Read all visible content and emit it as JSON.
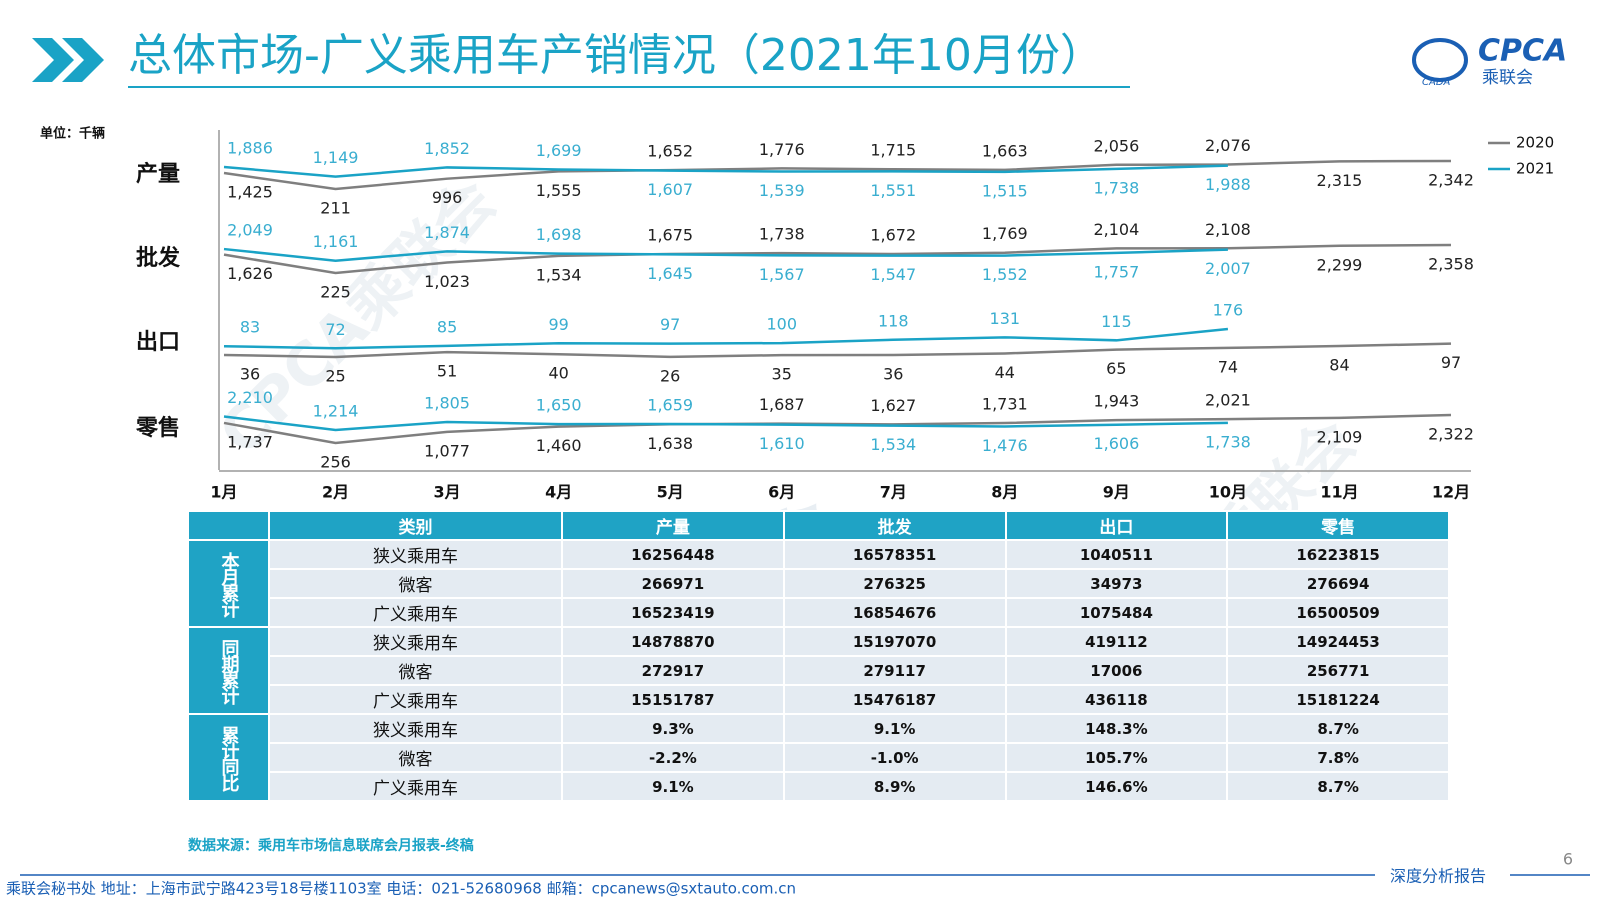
{
  "header": {
    "title": "总体市场-广义乘用车产销情况（2021年10月份）",
    "logo_text": "CPCA",
    "logo_sub": "乘联会",
    "logo_mark": "CADA"
  },
  "unit": "单位：千辆",
  "watermark": "CPCA乘联会",
  "chart_data": {
    "type": "line",
    "categories": [
      "1月",
      "2月",
      "3月",
      "4月",
      "5月",
      "6月",
      "7月",
      "8月",
      "9月",
      "10月",
      "11月",
      "12月"
    ],
    "panels": [
      "产量",
      "批发",
      "出口",
      "零售"
    ],
    "series": [
      {
        "name": "2020",
        "color": "#7f7f7f",
        "label_color": "#222222",
        "values": [
          [
            1425,
            211,
            996,
            1555,
            1652,
            1776,
            1715,
            1663,
            2056,
            2076,
            2315,
            2342
          ],
          [
            1626,
            225,
            1023,
            1534,
            1675,
            1738,
            1672,
            1769,
            2104,
            2108,
            2299,
            2358
          ],
          [
            36,
            25,
            51,
            40,
            26,
            35,
            36,
            44,
            65,
            74,
            84,
            97
          ],
          [
            1737,
            256,
            1077,
            1460,
            1638,
            1687,
            1627,
            1731,
            1943,
            2021,
            2109,
            2322
          ]
        ],
        "value_labels": [
          [
            "1,425",
            "211",
            "996",
            "1,555",
            "1,652",
            "1,776",
            "1,715",
            "1,663",
            "2,056",
            "2,076",
            "2,315",
            "2,342"
          ],
          [
            "1,626",
            "225",
            "1,023",
            "1,534",
            "1,675",
            "1,738",
            "1,672",
            "1,769",
            "2,104",
            "2,108",
            "2,299",
            "2,358"
          ],
          [
            "36",
            "25",
            "51",
            "40",
            "26",
            "35",
            "36",
            "44",
            "65",
            "74",
            "84",
            "97"
          ],
          [
            "1,737",
            "256",
            "1,077",
            "1,460",
            "1,638",
            "1,687",
            "1,627",
            "1,731",
            "1,943",
            "2,021",
            "2,109",
            "2,322"
          ]
        ]
      },
      {
        "name": "2021",
        "color": "#1aa3c6",
        "label_color": "#3aaed0",
        "values": [
          [
            1886,
            1149,
            1852,
            1699,
            1607,
            1539,
            1551,
            1515,
            1738,
            1988,
            null,
            null
          ],
          [
            2049,
            1161,
            1874,
            1698,
            1645,
            1567,
            1547,
            1552,
            1757,
            2007,
            null,
            null
          ],
          [
            83,
            72,
            85,
            99,
            97,
            100,
            118,
            131,
            115,
            176,
            null,
            null
          ],
          [
            2210,
            1214,
            1805,
            1650,
            1659,
            1610,
            1534,
            1476,
            1606,
            1738,
            null,
            null
          ]
        ],
        "value_labels": [
          [
            "1,886",
            "1,149",
            "1,852",
            "1,699",
            "1,607",
            "1,539",
            "1,551",
            "1,515",
            "1,738",
            "1,988",
            null,
            null
          ],
          [
            "2,049",
            "1,161",
            "1,874",
            "1,698",
            "1,645",
            "1,567",
            "1,547",
            "1,552",
            "1,757",
            "2,007",
            null,
            null
          ],
          [
            "83",
            "72",
            "85",
            "99",
            "97",
            "100",
            "118",
            "131",
            "115",
            "176",
            null,
            null
          ],
          [
            "2,210",
            "1,214",
            "1,805",
            "1,650",
            "1,659",
            "1,610",
            "1,534",
            "1,476",
            "1,606",
            "1,738",
            null,
            null
          ]
        ]
      }
    ],
    "legend": "top-right"
  },
  "table": {
    "header": [
      "类别",
      "产量",
      "批发",
      "出口",
      "零售"
    ],
    "groups": [
      {
        "label": "本月累计",
        "rows": [
          [
            "狭义乘用车",
            "16256448",
            "16578351",
            "1040511",
            "16223815"
          ],
          [
            "微客",
            "266971",
            "276325",
            "34973",
            "276694"
          ],
          [
            "广义乘用车",
            "16523419",
            "16854676",
            "1075484",
            "16500509"
          ]
        ]
      },
      {
        "label": "同期累计",
        "rows": [
          [
            "狭义乘用车",
            "14878870",
            "15197070",
            "419112",
            "14924453"
          ],
          [
            "微客",
            "272917",
            "279117",
            "17006",
            "256771"
          ],
          [
            "广义乘用车",
            "15151787",
            "15476187",
            "436118",
            "15181224"
          ]
        ]
      },
      {
        "label": "累计同比",
        "rows": [
          [
            "狭义乘用车",
            "9.3%",
            "9.1%",
            "148.3%",
            "8.7%"
          ],
          [
            "微客",
            "-2.2%",
            "-1.0%",
            "105.7%",
            "7.8%"
          ],
          [
            "广义乘用车",
            "9.1%",
            "8.9%",
            "146.6%",
            "8.7%"
          ]
        ]
      }
    ]
  },
  "source": "数据来源：乘用车市场信息联席会月报表-终稿",
  "page_number": "6",
  "footer": {
    "text": "乘联会秘书处   地址：上海市武宁路423号18号楼1103室   电话：021-52680968   邮箱：cpcanews@sxtauto.com.cn",
    "tag": "深度分析报告"
  }
}
